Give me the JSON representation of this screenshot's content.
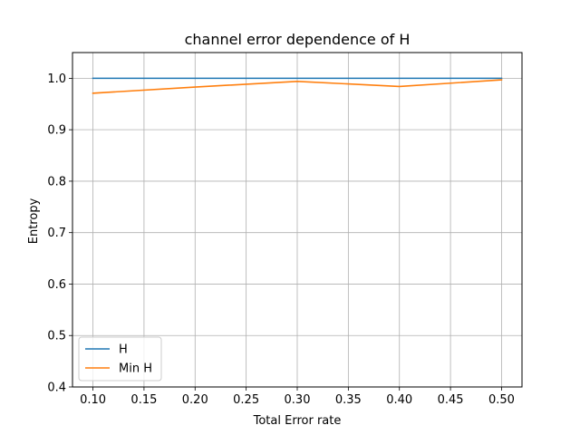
{
  "chart_data": {
    "type": "line",
    "title": "channel error dependence of H",
    "xlabel": "Total Error rate",
    "ylabel": "Entropy",
    "x": [
      0.1,
      0.2,
      0.3,
      0.4,
      0.5
    ],
    "series": [
      {
        "name": "H",
        "color": "#1f77b4",
        "values": [
          1.0,
          1.0,
          1.0,
          1.0,
          1.0
        ]
      },
      {
        "name": "Min H",
        "color": "#ff7f0e",
        "values": [
          0.971,
          0.983,
          0.994,
          0.984,
          0.997
        ]
      }
    ],
    "xlim": [
      0.08,
      0.52
    ],
    "ylim": [
      0.4,
      1.05
    ],
    "xticks": [
      0.1,
      0.15,
      0.2,
      0.25,
      0.3,
      0.35,
      0.4,
      0.45,
      0.5
    ],
    "xtick_labels": [
      "0.10",
      "0.15",
      "0.20",
      "0.25",
      "0.30",
      "0.35",
      "0.40",
      "0.45",
      "0.50"
    ],
    "yticks": [
      0.4,
      0.5,
      0.6,
      0.7,
      0.8,
      0.9,
      1.0
    ],
    "ytick_labels": [
      "0.4",
      "0.5",
      "0.6",
      "0.7",
      "0.8",
      "0.9",
      "1.0"
    ],
    "grid": true,
    "legend": "lower-left"
  }
}
